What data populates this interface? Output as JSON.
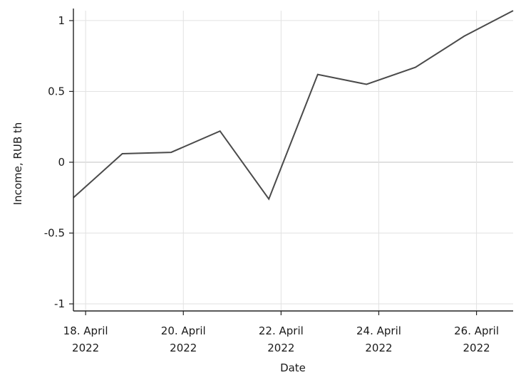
{
  "chart_data": {
    "type": "line",
    "title": "",
    "xlabel": "Date",
    "ylabel": "Income, RUB th",
    "x_ticks": [
      {
        "date": "2022-04-18",
        "line1": "18. April",
        "line2": "2022"
      },
      {
        "date": "2022-04-20",
        "line1": "20. April",
        "line2": "2022"
      },
      {
        "date": "2022-04-22",
        "line1": "22. April",
        "line2": "2022"
      },
      {
        "date": "2022-04-24",
        "line1": "24. April",
        "line2": "2022"
      },
      {
        "date": "2022-04-26",
        "line1": "26. April",
        "line2": "2022"
      }
    ],
    "y_ticks": [
      1,
      0.5,
      0,
      -0.5,
      -1
    ],
    "y_tick_labels": [
      "1",
      "0.5",
      "0",
      "-0.5",
      "-1"
    ],
    "xlim": [
      "2022-04-17T18:00",
      "2022-04-26T18:00"
    ],
    "ylim": [
      -1.05,
      1.07
    ],
    "grid": true,
    "series": [
      {
        "x": [
          "2022-04-17T18:00",
          "2022-04-18T18:00",
          "2022-04-19T18:00",
          "2022-04-20T18:00",
          "2022-04-21T18:00",
          "2022-04-22T18:00",
          "2022-04-23T18:00",
          "2022-04-24T18:00",
          "2022-04-25T18:00",
          "2022-04-26T18:00"
        ],
        "y": [
          -0.25,
          0.06,
          0.07,
          0.22,
          -0.26,
          0.62,
          0.55,
          0.67,
          0.89,
          1.07
        ]
      }
    ],
    "colors": {
      "line": "#4a4a4a",
      "grid": "#e2e2e2",
      "axis": "#222222"
    }
  }
}
